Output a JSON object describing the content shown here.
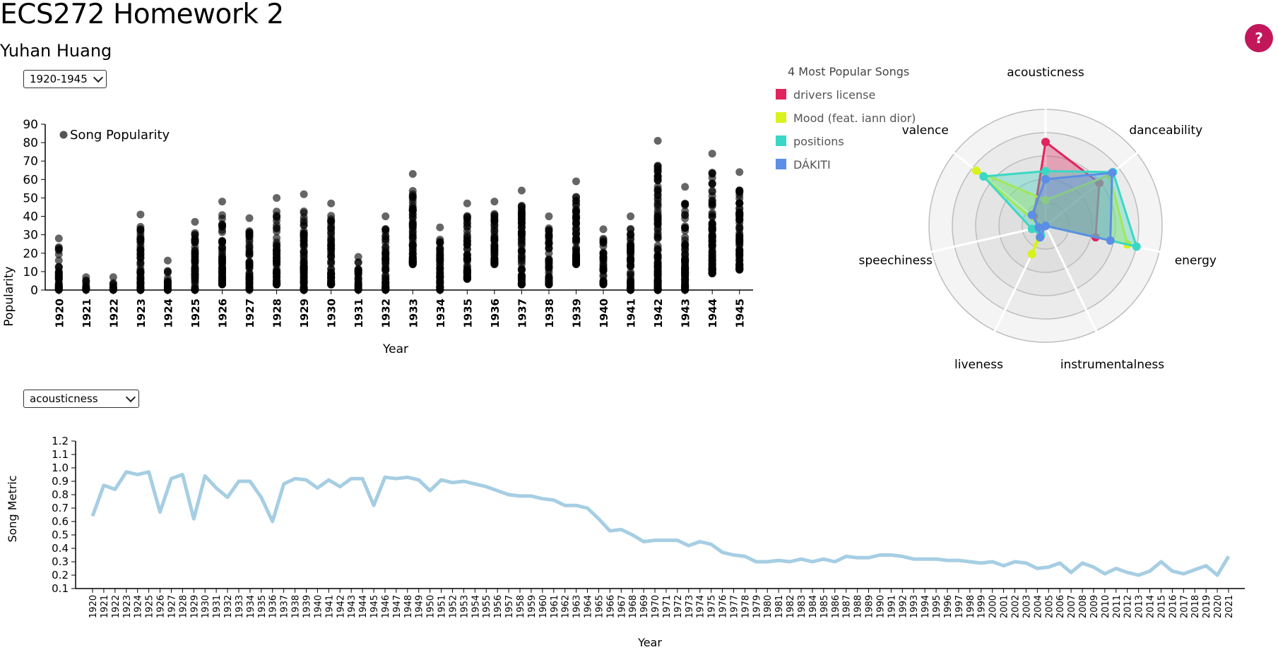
{
  "header": {
    "title": "ECS272 Homework 2",
    "author": "Yuhan Huang",
    "help_label": "?"
  },
  "controls": {
    "year_range": "1920-1945",
    "metric": "acousticness"
  },
  "chart_data": [
    {
      "type": "scatter",
      "ylabel": "Popularity",
      "xlabel": "Year",
      "legend": "Song Popularity",
      "legend_position": "top-left",
      "ylim": [
        0,
        90
      ],
      "yticks": [
        0,
        10,
        20,
        30,
        40,
        50,
        60,
        70,
        80,
        90
      ],
      "categories": [
        "1920",
        "1921",
        "1922",
        "1923",
        "1924",
        "1925",
        "1926",
        "1927",
        "1928",
        "1929",
        "1930",
        "1931",
        "1932",
        "1933",
        "1934",
        "1935",
        "1936",
        "1937",
        "1938",
        "1939",
        "1940",
        "1941",
        "1942",
        "1943",
        "1944",
        "1945"
      ],
      "ranges": [
        [
          0,
          28
        ],
        [
          0,
          7
        ],
        [
          0,
          7
        ],
        [
          0,
          41
        ],
        [
          0,
          16
        ],
        [
          0,
          37
        ],
        [
          3,
          48
        ],
        [
          0,
          39
        ],
        [
          3,
          50
        ],
        [
          0,
          52
        ],
        [
          3,
          47
        ],
        [
          0,
          18
        ],
        [
          0,
          40
        ],
        [
          14,
          63
        ],
        [
          0,
          34
        ],
        [
          6,
          47
        ],
        [
          14,
          48
        ],
        [
          3,
          54
        ],
        [
          3,
          40
        ],
        [
          14,
          59
        ],
        [
          3,
          33
        ],
        [
          0,
          40
        ],
        [
          0,
          81
        ],
        [
          0,
          56
        ],
        [
          9,
          74
        ],
        [
          11,
          64
        ]
      ],
      "grid": false
    },
    {
      "type": "radar",
      "title": "4 Most Popular Songs",
      "axes": [
        "acousticness",
        "danceability",
        "energy",
        "instrumentalness",
        "liveness",
        "speechiness",
        "valence"
      ],
      "rmax": 1,
      "series": [
        {
          "name": "drivers license",
          "color": "#e0245e",
          "values": [
            0.72,
            0.59,
            0.44,
            0.0,
            0.1,
            0.06,
            0.13
          ]
        },
        {
          "name": "Mood (feat. iann dior)",
          "color": "#d8f21d",
          "values": [
            0.22,
            0.7,
            0.72,
            0.0,
            0.27,
            0.04,
            0.76
          ]
        },
        {
          "name": "positions",
          "color": "#3ad8c4",
          "values": [
            0.47,
            0.74,
            0.8,
            0.0,
            0.09,
            0.12,
            0.68
          ]
        },
        {
          "name": "DÁKITI",
          "color": "#5b8ee6",
          "values": [
            0.4,
            0.73,
            0.57,
            0.0,
            0.11,
            0.06,
            0.15
          ]
        }
      ]
    },
    {
      "type": "line",
      "xlabel": "Year",
      "ylabel": "Song Metric",
      "ylim": [
        0.1,
        1.2
      ],
      "yticks": [
        0.1,
        0.2,
        0.3,
        0.4,
        0.5,
        0.6,
        0.7,
        0.8,
        0.9,
        1.0,
        1.1,
        1.2
      ],
      "color": "#a6cee3",
      "x": [
        1920,
        1921,
        1922,
        1923,
        1924,
        1925,
        1926,
        1927,
        1928,
        1929,
        1930,
        1931,
        1932,
        1933,
        1934,
        1935,
        1936,
        1937,
        1938,
        1939,
        1940,
        1941,
        1942,
        1943,
        1944,
        1945,
        1946,
        1947,
        1948,
        1949,
        1950,
        1951,
        1952,
        1953,
        1954,
        1955,
        1956,
        1957,
        1958,
        1959,
        1960,
        1961,
        1962,
        1963,
        1964,
        1965,
        1966,
        1967,
        1968,
        1969,
        1970,
        1971,
        1972,
        1973,
        1974,
        1975,
        1976,
        1977,
        1978,
        1979,
        1980,
        1981,
        1982,
        1983,
        1984,
        1985,
        1986,
        1987,
        1988,
        1989,
        1990,
        1991,
        1992,
        1993,
        1994,
        1995,
        1996,
        1997,
        1998,
        1999,
        2000,
        2001,
        2002,
        2003,
        2004,
        2005,
        2006,
        2007,
        2008,
        2009,
        2010,
        2011,
        2012,
        2013,
        2014,
        2015,
        2016,
        2017,
        2018,
        2019,
        2020,
        2021
      ],
      "values": [
        0.64,
        0.87,
        0.84,
        0.97,
        0.95,
        0.97,
        0.67,
        0.92,
        0.95,
        0.62,
        0.94,
        0.85,
        0.78,
        0.9,
        0.9,
        0.78,
        0.6,
        0.88,
        0.92,
        0.91,
        0.85,
        0.91,
        0.86,
        0.92,
        0.92,
        0.72,
        0.93,
        0.92,
        0.93,
        0.91,
        0.83,
        0.91,
        0.89,
        0.9,
        0.88,
        0.86,
        0.83,
        0.8,
        0.79,
        0.79,
        0.77,
        0.76,
        0.72,
        0.72,
        0.7,
        0.62,
        0.53,
        0.54,
        0.5,
        0.45,
        0.46,
        0.46,
        0.46,
        0.42,
        0.45,
        0.43,
        0.37,
        0.35,
        0.34,
        0.3,
        0.3,
        0.31,
        0.3,
        0.32,
        0.3,
        0.32,
        0.3,
        0.34,
        0.33,
        0.33,
        0.35,
        0.35,
        0.34,
        0.32,
        0.32,
        0.32,
        0.31,
        0.31,
        0.3,
        0.29,
        0.3,
        0.27,
        0.3,
        0.29,
        0.25,
        0.26,
        0.29,
        0.22,
        0.29,
        0.26,
        0.21,
        0.25,
        0.22,
        0.2,
        0.23,
        0.3,
        0.23,
        0.21,
        0.24,
        0.27,
        0.2,
        0.34
      ]
    }
  ]
}
